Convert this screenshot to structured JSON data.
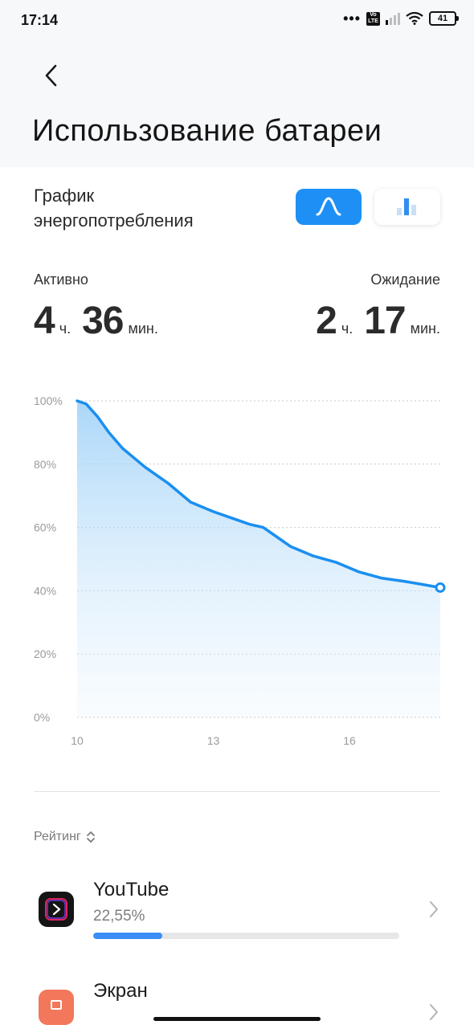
{
  "status": {
    "time": "17:14",
    "dots": "•••",
    "volte": "Vo LTE",
    "battery": "41"
  },
  "header": {
    "title": "Использование батареи",
    "back_icon": "chevron-left-icon"
  },
  "consumption": {
    "title": "График энергопотребления",
    "toggle_line_icon": "line-chart-icon",
    "toggle_bar_icon": "bar-chart-icon",
    "active": {
      "label": "Активно",
      "hours": "4",
      "hours_unit": "ч.",
      "minutes": "36",
      "minutes_unit": "мин."
    },
    "standby": {
      "label": "Ожидание",
      "hours": "2",
      "hours_unit": "ч.",
      "minutes": "17",
      "minutes_unit": "мин."
    }
  },
  "chart_data": {
    "type": "area",
    "title": "",
    "xlabel": "",
    "ylabel": "",
    "x_ticks": [
      "10",
      "13",
      "16"
    ],
    "y_ticks": [
      "0%",
      "20%",
      "40%",
      "60%",
      "80%",
      "100%"
    ],
    "xlim": [
      10,
      18
    ],
    "ylim": [
      0,
      100
    ],
    "grid": true,
    "color": "#1a8ff0",
    "series": [
      {
        "x": [
          10,
          10.2,
          10.45,
          10.7,
          11,
          11.5,
          12,
          12.5,
          13,
          13.4,
          13.8,
          14.1,
          14.3,
          14.7,
          15.2,
          15.7,
          16.2,
          16.7,
          17.2,
          17.6,
          18
        ],
        "y": [
          100,
          99,
          95,
          90,
          85,
          79,
          74,
          68,
          65,
          63,
          61,
          60,
          58,
          54,
          51,
          49,
          46,
          44,
          43,
          42,
          41
        ]
      }
    ]
  },
  "ranking": {
    "sort_label": "Рейтинг",
    "sort_icon": "sort-updown-icon",
    "items": [
      {
        "name": "YouTube",
        "percent": "22,55%",
        "value": 0.2255,
        "icon": "youtube-icon",
        "icon_color": "#151515"
      },
      {
        "name": "Экран",
        "icon": "screen-icon",
        "icon_color": "#f2775b"
      }
    ]
  }
}
